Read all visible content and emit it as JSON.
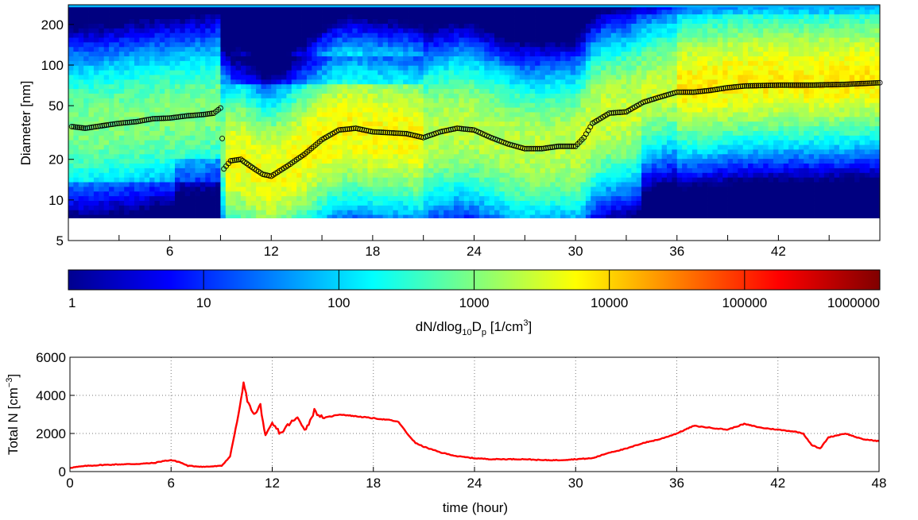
{
  "chart_data": [
    {
      "type": "heatmap",
      "title": "",
      "xlabel": "",
      "ylabel": "Diameter [nm]",
      "x_axis": {
        "range": [
          0,
          48
        ],
        "ticks": [
          6,
          12,
          18,
          24,
          30,
          36,
          42
        ]
      },
      "y_axis": {
        "scale": "log",
        "range": [
          5,
          280
        ],
        "ticks": [
          5,
          10,
          20,
          50,
          100,
          200
        ],
        "tick_labels": [
          "5",
          "10",
          "20",
          "50",
          "100",
          "200"
        ]
      },
      "colorbar": {
        "label_main": "dN/dlog",
        "label_sub": "10",
        "label_mid": "D",
        "label_sub2": "p",
        "label_unit": " [1/cm",
        "label_sup": "3",
        "label_end": "]",
        "scale": "log",
        "tick_labels": [
          "1",
          "10",
          "100",
          "1000",
          "10000",
          "100000",
          "1000000"
        ],
        "colormap": "jet"
      },
      "mode_diameter": {
        "name": "mode diameter",
        "points": [
          [
            0.2,
            35
          ],
          [
            1,
            34
          ],
          [
            2,
            35.5
          ],
          [
            3,
            37
          ],
          [
            4,
            38
          ],
          [
            5,
            40
          ],
          [
            6,
            40.5
          ],
          [
            7,
            42
          ],
          [
            8,
            43
          ],
          [
            8.6,
            44
          ],
          [
            9,
            48
          ],
          [
            9.2,
            17
          ],
          [
            9.6,
            19.5
          ],
          [
            10.2,
            20
          ],
          [
            11,
            17
          ],
          [
            11.5,
            15.5
          ],
          [
            12,
            15
          ],
          [
            13,
            18
          ],
          [
            14,
            22
          ],
          [
            15,
            28
          ],
          [
            16,
            33
          ],
          [
            17,
            34
          ],
          [
            18,
            32
          ],
          [
            19,
            31.5
          ],
          [
            20,
            31
          ],
          [
            21,
            29
          ],
          [
            22,
            32
          ],
          [
            23,
            34
          ],
          [
            24,
            33
          ],
          [
            25,
            29
          ],
          [
            26,
            26
          ],
          [
            27,
            24
          ],
          [
            28,
            24
          ],
          [
            29,
            25
          ],
          [
            30,
            25
          ],
          [
            30.5,
            29
          ],
          [
            31,
            37
          ],
          [
            32,
            44
          ],
          [
            33,
            45
          ],
          [
            34,
            53
          ],
          [
            35,
            58
          ],
          [
            36,
            63
          ],
          [
            37,
            63
          ],
          [
            38,
            65
          ],
          [
            39,
            68
          ],
          [
            40,
            70
          ],
          [
            42,
            71
          ],
          [
            44,
            71
          ],
          [
            46,
            72
          ],
          [
            48,
            74
          ]
        ]
      }
    },
    {
      "type": "line",
      "title": "",
      "xlabel": "time (hour)",
      "ylabel_main": "Total N [cm",
      "ylabel_sup": "−3",
      "ylabel_end": "]",
      "xlim": [
        0,
        48
      ],
      "ylim": [
        0,
        6000
      ],
      "x_ticks": [
        0,
        6,
        12,
        18,
        24,
        30,
        36,
        42,
        48
      ],
      "y_ticks": [
        0,
        2000,
        4000,
        6000
      ],
      "grid": true,
      "series": [
        {
          "color": "#ff0000",
          "points": [
            [
              0,
              200
            ],
            [
              1,
              300
            ],
            [
              2,
              350
            ],
            [
              3,
              380
            ],
            [
              4,
              400
            ],
            [
              5,
              450
            ],
            [
              5.5,
              550
            ],
            [
              6,
              600
            ],
            [
              6.5,
              500
            ],
            [
              7,
              300
            ],
            [
              8,
              250
            ],
            [
              9,
              300
            ],
            [
              9.5,
              800
            ],
            [
              10,
              3000
            ],
            [
              10.3,
              4600
            ],
            [
              10.6,
              3500
            ],
            [
              11,
              3000
            ],
            [
              11.3,
              3500
            ],
            [
              11.6,
              1800
            ],
            [
              12,
              2500
            ],
            [
              12.5,
              2000
            ],
            [
              13,
              2500
            ],
            [
              13.5,
              2800
            ],
            [
              14,
              2200
            ],
            [
              14.5,
              3200
            ],
            [
              15,
              2800
            ],
            [
              15.5,
              2900
            ],
            [
              16,
              3000
            ],
            [
              17,
              2900
            ],
            [
              18,
              2800
            ],
            [
              19,
              2700
            ],
            [
              19.5,
              2600
            ],
            [
              20,
              2000
            ],
            [
              20.5,
              1500
            ],
            [
              21,
              1300
            ],
            [
              22,
              1000
            ],
            [
              23,
              800
            ],
            [
              24,
              700
            ],
            [
              25,
              650
            ],
            [
              26,
              650
            ],
            [
              27,
              650
            ],
            [
              28,
              600
            ],
            [
              29,
              600
            ],
            [
              30,
              650
            ],
            [
              31,
              700
            ],
            [
              32,
              1000
            ],
            [
              33,
              1200
            ],
            [
              34,
              1500
            ],
            [
              35,
              1700
            ],
            [
              36,
              2000
            ],
            [
              37,
              2400
            ],
            [
              38,
              2300
            ],
            [
              39,
              2200
            ],
            [
              40,
              2500
            ],
            [
              41,
              2300
            ],
            [
              42,
              2200
            ],
            [
              43,
              2100
            ],
            [
              43.5,
              2000
            ],
            [
              44,
              1400
            ],
            [
              44.5,
              1200
            ],
            [
              45,
              1800
            ],
            [
              46,
              2000
            ],
            [
              47,
              1700
            ],
            [
              48,
              1600
            ]
          ]
        }
      ]
    }
  ]
}
